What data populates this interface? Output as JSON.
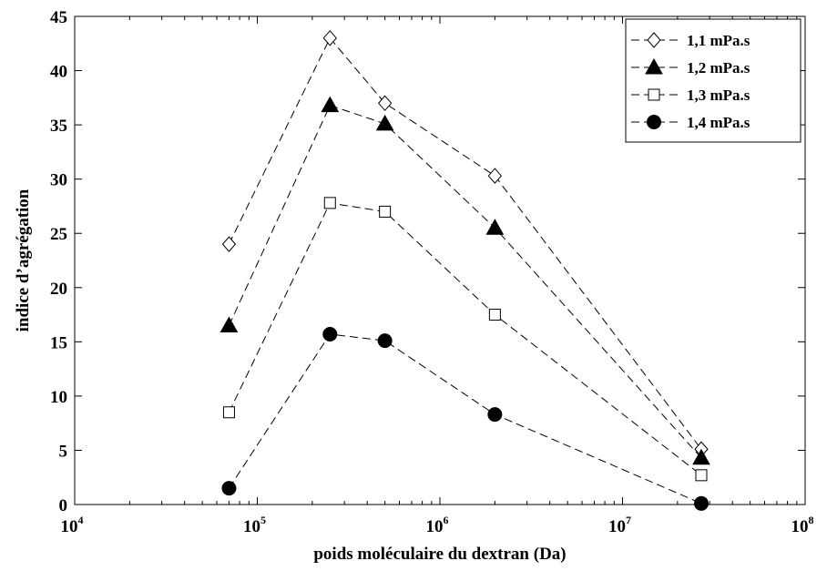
{
  "chart_data": {
    "type": "line",
    "xscale": "log",
    "xlabel": "poids moléculaire du dextran (Da)",
    "ylabel": "indice d’agrégation",
    "xlim": [
      10000,
      100000000
    ],
    "ylim": [
      0,
      45
    ],
    "x_ticks": [
      {
        "base": "10",
        "exp": "4"
      },
      {
        "base": "10",
        "exp": "5"
      },
      {
        "base": "10",
        "exp": "6"
      },
      {
        "base": "10",
        "exp": "7"
      },
      {
        "base": "10",
        "exp": "8"
      }
    ],
    "y_ticks": [
      "0",
      "5",
      "10",
      "15",
      "20",
      "25",
      "30",
      "35",
      "40",
      "45"
    ],
    "grid": false,
    "legend_position": "top-right",
    "x": [
      70000,
      250000,
      500000,
      2000000,
      27000000
    ],
    "series": [
      {
        "name": "1,1 mPa.s",
        "marker": "diamond-open",
        "values": [
          24.0,
          43.0,
          37.0,
          30.3,
          5.1
        ]
      },
      {
        "name": "1,2 mPa.s",
        "marker": "triangle-filled",
        "values": [
          16.5,
          36.8,
          35.1,
          25.5,
          4.3
        ]
      },
      {
        "name": "1,3 mPa.s",
        "marker": "square-open",
        "values": [
          8.5,
          27.8,
          27.0,
          17.5,
          2.7
        ]
      },
      {
        "name": "1,4 mPa.s",
        "marker": "circle-filled",
        "values": [
          1.5,
          15.7,
          15.1,
          8.3,
          0.1
        ]
      }
    ],
    "line_style": "dashed",
    "color": "#000000"
  }
}
